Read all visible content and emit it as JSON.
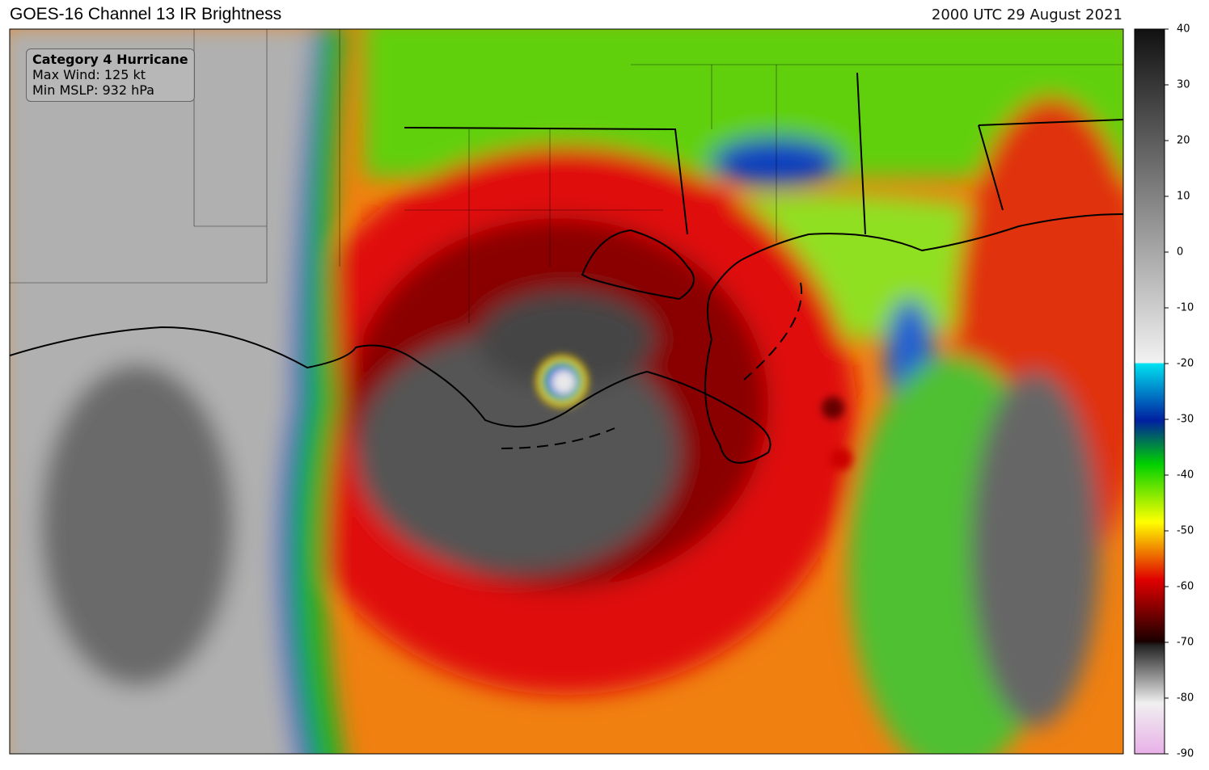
{
  "header": {
    "title": "GOES-16 Channel 13 IR Brightness",
    "time": "2000 UTC 29 August 2021"
  },
  "info_box": {
    "lines": [
      "Category 4 Hurricane",
      "Max Wind: 125 kt",
      "Min MSLP: 932 hPa"
    ]
  },
  "colorbar": {
    "lim": [
      -90,
      40
    ],
    "ticks": [
      40,
      30,
      20,
      10,
      0,
      -10,
      -20,
      -30,
      -40,
      -50,
      -60,
      -70,
      -80,
      -90
    ]
  }
}
